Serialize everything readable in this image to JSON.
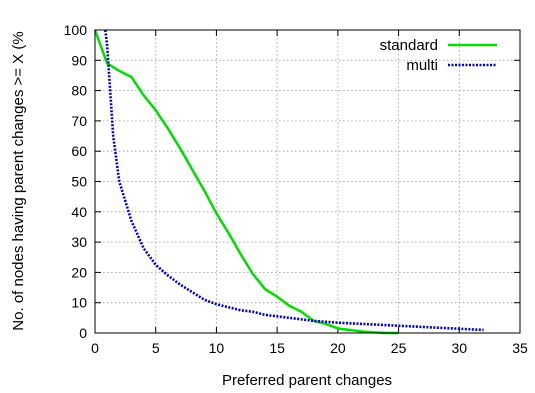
{
  "chart_data": {
    "type": "line",
    "xlabel": "Preferred parent changes",
    "ylabel": "No. of nodes having parent changes >= X (%",
    "xlim": [
      0,
      35
    ],
    "ylim": [
      0,
      100
    ],
    "xticks": [
      0,
      5,
      10,
      15,
      20,
      25,
      30,
      35
    ],
    "yticks": [
      0,
      10,
      20,
      30,
      40,
      50,
      60,
      70,
      80,
      90,
      100
    ],
    "grid": true,
    "legend_position": "top-right",
    "series": [
      {
        "name": "standard",
        "color": "#00dd00",
        "style": "solid",
        "x": [
          0,
          1,
          2,
          3,
          4,
          5,
          6,
          7,
          8,
          9,
          10,
          11,
          12,
          13,
          14,
          15,
          16,
          17,
          18,
          19,
          20,
          21,
          22,
          23,
          24,
          25
        ],
        "y": [
          100,
          89,
          86.5,
          84.5,
          78.5,
          73.5,
          67.5,
          61,
          54,
          47,
          39.5,
          33,
          26,
          19.5,
          14.5,
          12,
          9,
          7,
          4,
          3,
          1.5,
          1,
          0.5,
          0.2,
          0,
          0
        ]
      },
      {
        "name": "multi",
        "color": "#0000cc",
        "style": "dotted",
        "x": [
          0.85,
          1,
          1.25,
          1.5,
          2,
          3,
          4,
          5,
          6,
          7,
          8,
          9,
          10,
          11,
          12,
          13,
          14,
          15,
          16,
          17,
          18,
          19,
          20,
          22,
          24,
          26,
          28,
          30,
          32
        ],
        "y": [
          100,
          95,
          80,
          65,
          50,
          37,
          28,
          22.5,
          19,
          16,
          13.5,
          11,
          9.5,
          8.5,
          7.5,
          7,
          6,
          5.5,
          5,
          4.5,
          4,
          3.7,
          3.4,
          3,
          2.6,
          2.2,
          1.8,
          1.4,
          1
        ]
      }
    ]
  }
}
